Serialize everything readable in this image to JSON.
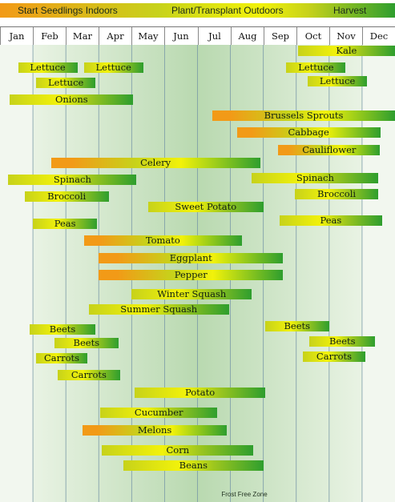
{
  "colors": {
    "start": "#f29a17",
    "transplant": "#c7d21a",
    "bright": "#f2f20a",
    "harvest": "#2e9e2e",
    "frost_zone": "#b9d9b0"
  },
  "legend": {
    "start_label": "Start Seedlings Indoors",
    "transplant_label": "Plant/Transplant Outdoors",
    "harvest_label": "Harvest"
  },
  "frost_zone_label": "Frost Free Zone",
  "chart_data": {
    "type": "bar",
    "months": [
      "Jan",
      "Feb",
      "Mar",
      "Apr",
      "May",
      "Jun",
      "Jul",
      "Aug",
      "Sep",
      "Oct",
      "Nov",
      "Dec"
    ],
    "x_unit": "month",
    "xlim": [
      0,
      12
    ],
    "frost_free_zone": [
      1,
      11
    ],
    "rows": [
      {
        "label": "Kale",
        "start": 9.05,
        "end": 12.0,
        "kind": "transplant-harvest"
      },
      {
        "label": "Lettuce",
        "start": 0.55,
        "end": 2.35,
        "kind": "transplant-harvest"
      },
      {
        "label": "Lettuce",
        "start": 2.55,
        "end": 4.35,
        "kind": "transplant-harvest"
      },
      {
        "label": "Lettuce",
        "start": 8.7,
        "end": 10.5,
        "kind": "transplant-harvest"
      },
      {
        "label": "Lettuce",
        "start": 1.1,
        "end": 2.9,
        "kind": "transplant-harvest"
      },
      {
        "label": "Lettuce",
        "start": 9.35,
        "end": 11.15,
        "kind": "transplant-harvest"
      },
      {
        "label": "Onions",
        "start": 0.3,
        "end": 4.05,
        "kind": "transplant-harvest"
      },
      {
        "label": "Brussels Sprouts",
        "start": 6.45,
        "end": 12.0,
        "kind": "start-transplant-harvest"
      },
      {
        "label": "Cabbage",
        "start": 7.2,
        "end": 11.55,
        "kind": "start-transplant-harvest"
      },
      {
        "label": "Cauliflower",
        "start": 8.45,
        "end": 11.55,
        "kind": "start-transplant-harvest"
      },
      {
        "label": "Celery",
        "start": 1.55,
        "end": 7.9,
        "kind": "start-transplant-harvest"
      },
      {
        "label": "Spinach",
        "start": 0.25,
        "end": 4.15,
        "kind": "transplant-harvest"
      },
      {
        "label": "Spinach",
        "start": 7.65,
        "end": 11.5,
        "kind": "transplant-harvest"
      },
      {
        "label": "Broccoli",
        "start": 0.75,
        "end": 3.3,
        "kind": "transplant-harvest"
      },
      {
        "label": "Broccoli",
        "start": 8.95,
        "end": 11.5,
        "kind": "transplant-harvest"
      },
      {
        "label": "Sweet Potato",
        "start": 4.5,
        "end": 8.0,
        "kind": "transplant-harvest"
      },
      {
        "label": "Peas",
        "start": 1.0,
        "end": 2.95,
        "kind": "transplant-harvest"
      },
      {
        "label": "Peas",
        "start": 8.5,
        "end": 11.6,
        "kind": "transplant-harvest"
      },
      {
        "label": "Tomato",
        "start": 2.55,
        "end": 7.35,
        "kind": "start-transplant-harvest"
      },
      {
        "label": "Eggplant",
        "start": 3.0,
        "end": 8.6,
        "kind": "start-transplant-harvest"
      },
      {
        "label": "Pepper",
        "start": 3.0,
        "end": 8.6,
        "kind": "start-transplant-harvest"
      },
      {
        "label": "Winter Squash",
        "start": 4.0,
        "end": 7.65,
        "kind": "transplant-harvest"
      },
      {
        "label": "Summer Squash",
        "start": 2.7,
        "end": 6.95,
        "kind": "transplant-harvest"
      },
      {
        "label": "Beets",
        "start": 0.9,
        "end": 2.9,
        "kind": "transplant-harvest"
      },
      {
        "label": "Beets",
        "start": 8.05,
        "end": 10.0,
        "kind": "transplant-harvest"
      },
      {
        "label": "Beets",
        "start": 1.65,
        "end": 3.6,
        "kind": "transplant-harvest"
      },
      {
        "label": "Beets",
        "start": 9.4,
        "end": 11.4,
        "kind": "transplant-harvest"
      },
      {
        "label": "Carrots",
        "start": 1.1,
        "end": 2.65,
        "kind": "transplant-harvest"
      },
      {
        "label": "Carrots",
        "start": 9.2,
        "end": 11.1,
        "kind": "transplant-harvest"
      },
      {
        "label": "Carrots",
        "start": 1.75,
        "end": 3.65,
        "kind": "transplant-harvest"
      },
      {
        "label": "Potato",
        "start": 4.1,
        "end": 8.05,
        "kind": "transplant-harvest"
      },
      {
        "label": "Cucumber",
        "start": 3.05,
        "end": 6.6,
        "kind": "transplant-harvest"
      },
      {
        "label": "Melons",
        "start": 2.5,
        "end": 6.9,
        "kind": "start-transplant-harvest"
      },
      {
        "label": "Corn",
        "start": 3.1,
        "end": 7.7,
        "kind": "transplant-harvest"
      },
      {
        "label": "Beans",
        "start": 3.75,
        "end": 8.0,
        "kind": "transplant-harvest"
      }
    ]
  }
}
